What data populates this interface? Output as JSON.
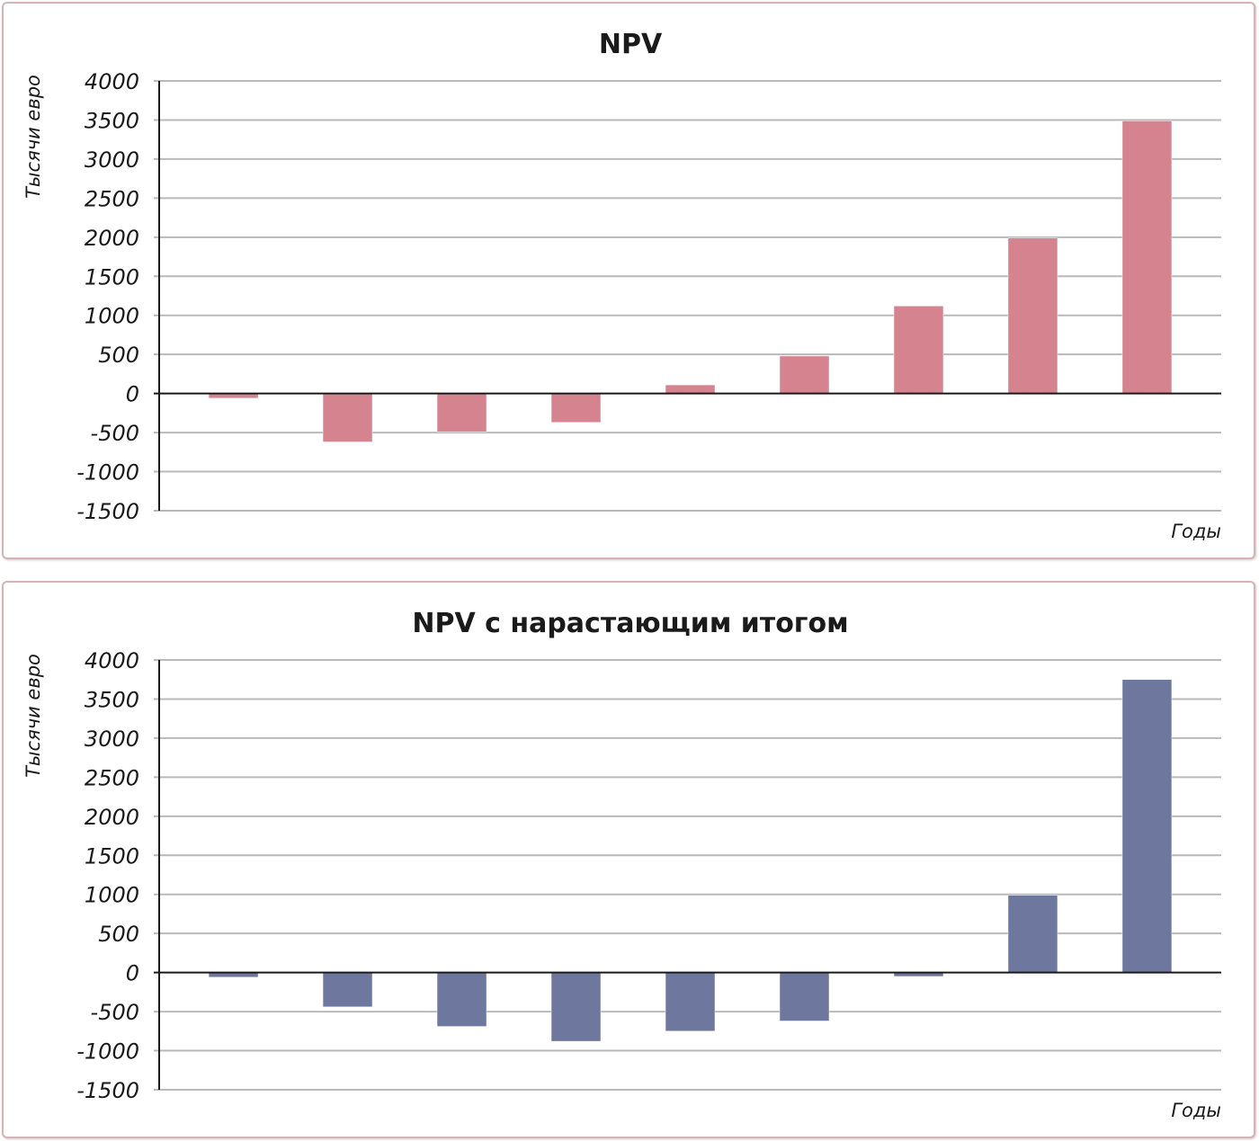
{
  "chart_data": [
    {
      "type": "bar",
      "title": "NPV",
      "ylabel": "Тысячи евро",
      "xlabel": "Годы",
      "ylim": [
        -1500,
        4000
      ],
      "yticks": [
        4000,
        3500,
        3000,
        2500,
        2000,
        1500,
        1000,
        500,
        0,
        -500,
        -1000,
        -1500
      ],
      "ytick_labels": [
        "4000",
        "3500",
        "3000",
        "2500",
        "2000",
        "1500",
        "1000",
        "500",
        "0",
        "-500",
        "-1000",
        "-1500"
      ],
      "grid": true,
      "bar_color": "#d4838f",
      "values": [
        -60,
        -620,
        -490,
        -370,
        110,
        480,
        1120,
        1990,
        3490
      ]
    },
    {
      "type": "bar",
      "title": "NPV с нарастающим итогом",
      "ylabel": "Тысячи евро",
      "xlabel": "Годы",
      "ylim": [
        -1500,
        4000
      ],
      "yticks": [
        4000,
        3500,
        3000,
        2500,
        2000,
        1500,
        1000,
        500,
        0,
        -500,
        -1000,
        -1500
      ],
      "ytick_labels": [
        "4000",
        "3500",
        "3000",
        "2500",
        "2000",
        "1500",
        "1000",
        "500",
        "0",
        "-500",
        "-1000",
        "-1500"
      ],
      "grid": true,
      "bar_color": "#6e789e",
      "values": [
        -60,
        -440,
        -690,
        -880,
        -750,
        -620,
        -50,
        990,
        3750
      ]
    }
  ]
}
